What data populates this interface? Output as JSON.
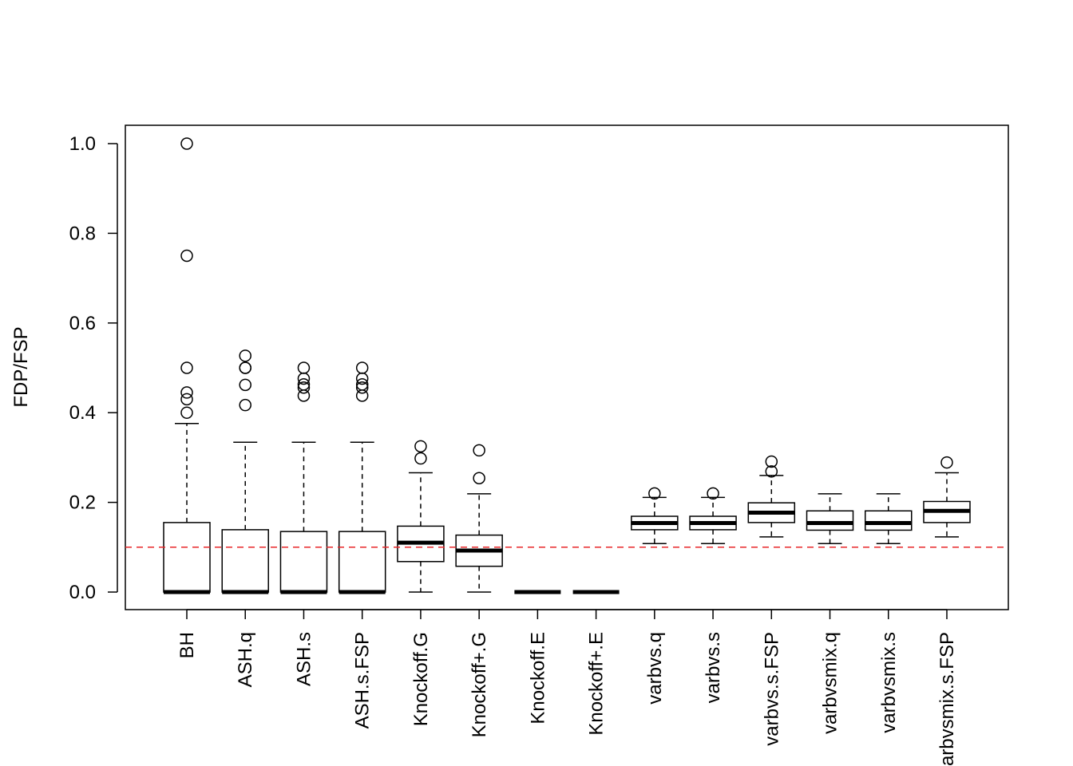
{
  "chart_data": {
    "type": "boxplot",
    "title": "",
    "xlabel": "",
    "ylabel": "FDP/FSP",
    "ylim": [
      -0.04,
      1.04
    ],
    "yticks": [
      "0.0",
      "0.2",
      "0.4",
      "0.6",
      "0.8",
      "1.0"
    ],
    "grid": false,
    "reference_line": {
      "y": 0.1,
      "color": "#e8262a",
      "style": "dashed"
    },
    "categories": [
      "BH",
      "ASH.q",
      "ASH.s",
      "ASH.s.FSP",
      "Knockoff.G",
      "Knockoff+.G",
      "Knockoff.E",
      "Knockoff+.E",
      "varbvs.q",
      "varbvs.s",
      "varbvs.s.FSP",
      "varbvsmix.q",
      "varbvsmix.s",
      "varbvsmix.s.FSP"
    ],
    "boxes": [
      {
        "min": 0,
        "q1": 0,
        "median": 0,
        "q3": 0.155,
        "max": 0.376,
        "outliers": [
          0.4,
          0.43,
          0.445,
          0.5,
          0.75,
          1.0
        ]
      },
      {
        "min": 0,
        "q1": 0,
        "median": 0,
        "q3": 0.139,
        "max": 0.334,
        "outliers": [
          0.417,
          0.462,
          0.5,
          0.5,
          0.527
        ]
      },
      {
        "min": 0,
        "q1": 0,
        "median": 0,
        "q3": 0.135,
        "max": 0.334,
        "outliers": [
          0.438,
          0.456,
          0.463,
          0.476,
          0.5
        ]
      },
      {
        "min": 0,
        "q1": 0,
        "median": 0,
        "q3": 0.135,
        "max": 0.334,
        "outliers": [
          0.438,
          0.456,
          0.463,
          0.476,
          0.5
        ]
      },
      {
        "min": 0,
        "q1": 0.068,
        "median": 0.11,
        "q3": 0.147,
        "max": 0.266,
        "outliers": [
          0.298,
          0.325
        ]
      },
      {
        "min": 0,
        "q1": 0.0575,
        "median": 0.0925,
        "q3": 0.127,
        "max": 0.219,
        "outliers": [
          0.254,
          0.316
        ]
      },
      {
        "min": 0,
        "q1": 0,
        "median": 0,
        "q3": 0,
        "max": 0,
        "outliers": []
      },
      {
        "min": 0,
        "q1": 0,
        "median": 0,
        "q3": 0,
        "max": 0,
        "outliers": []
      },
      {
        "min": 0.108,
        "q1": 0.139,
        "median": 0.154,
        "q3": 0.169,
        "max": 0.211,
        "outliers": [
          0.22
        ]
      },
      {
        "min": 0.108,
        "q1": 0.139,
        "median": 0.154,
        "q3": 0.169,
        "max": 0.211,
        "outliers": [
          0.22
        ]
      },
      {
        "min": 0.123,
        "q1": 0.155,
        "median": 0.177,
        "q3": 0.199,
        "max": 0.26,
        "outliers": [
          0.269,
          0.291
        ]
      },
      {
        "min": 0.108,
        "q1": 0.138,
        "median": 0.154,
        "q3": 0.181,
        "max": 0.219,
        "outliers": []
      },
      {
        "min": 0.108,
        "q1": 0.138,
        "median": 0.154,
        "q3": 0.181,
        "max": 0.219,
        "outliers": []
      },
      {
        "min": 0.123,
        "q1": 0.155,
        "median": 0.181,
        "q3": 0.202,
        "max": 0.266,
        "outliers": [
          0.289
        ]
      }
    ]
  }
}
